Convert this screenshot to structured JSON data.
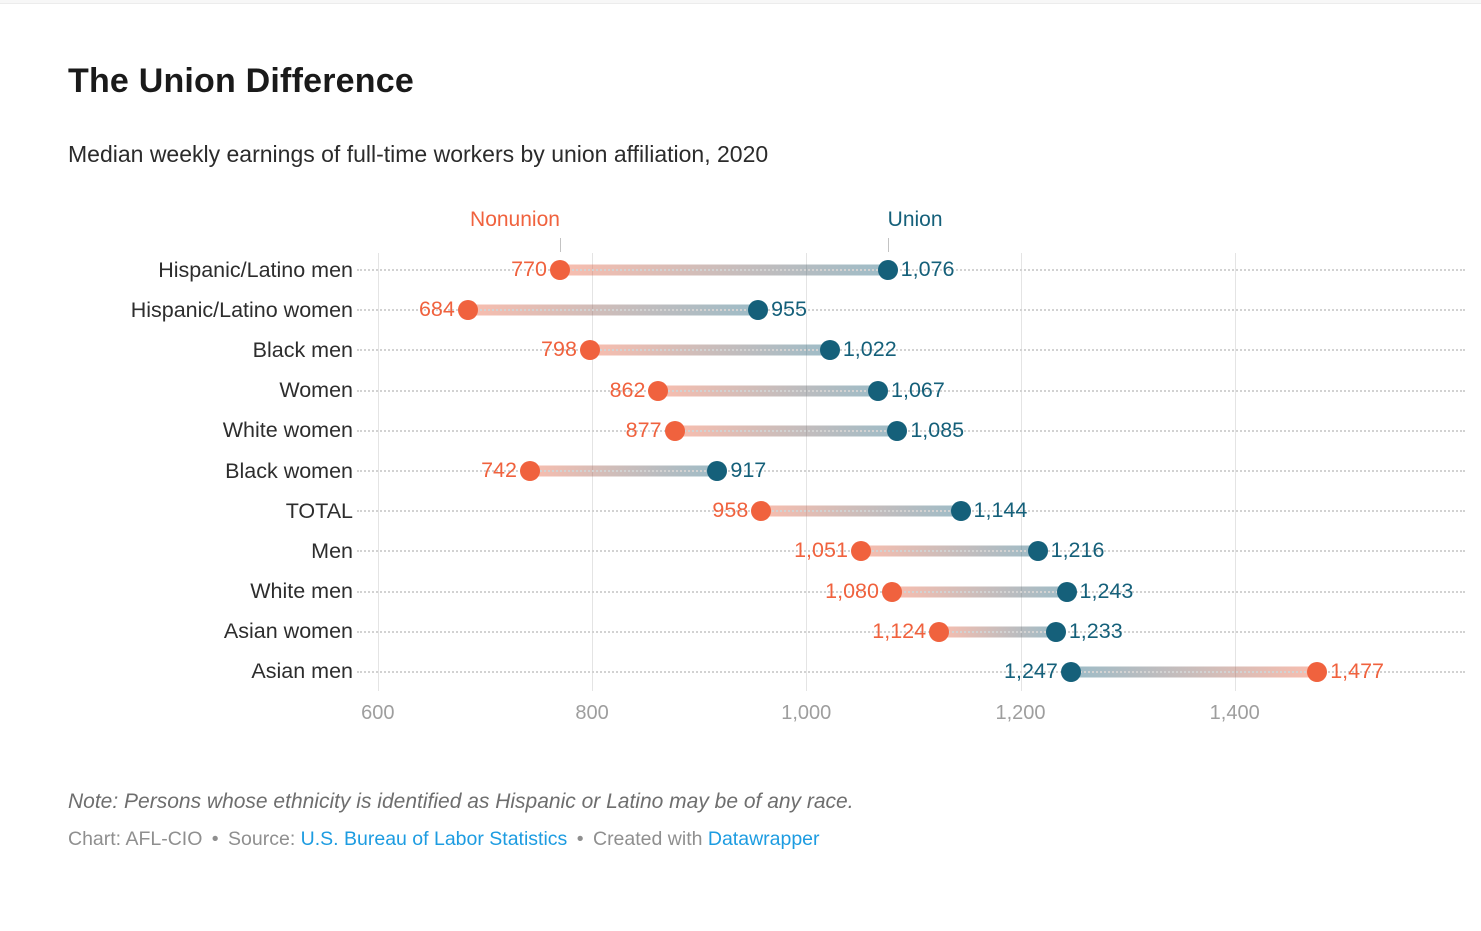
{
  "header": {
    "title": "The Union Difference",
    "subtitle": "Median weekly earnings of full-time workers by union affiliation, 2020"
  },
  "legend": {
    "nonunion_label": "Nonunion",
    "union_label": "Union"
  },
  "chart_data": {
    "type": "bar",
    "variant": "dumbbell",
    "title": "The Union Difference",
    "subtitle": "Median weekly earnings of full-time workers by union affiliation, 2020",
    "categories": [
      "Hispanic/Latino men",
      "Hispanic/Latino women",
      "Black men",
      "Women",
      "White women",
      "Black women",
      "TOTAL",
      "Men",
      "White men",
      "Asian women",
      "Asian men"
    ],
    "series": [
      {
        "name": "Nonunion",
        "values": [
          770,
          684,
          798,
          862,
          877,
          742,
          958,
          1051,
          1080,
          1124,
          1477
        ]
      },
      {
        "name": "Union",
        "values": [
          1076,
          955,
          1022,
          1067,
          1085,
          917,
          1144,
          1216,
          1243,
          1233,
          1247
        ]
      }
    ],
    "xlabel": "",
    "ylabel": "",
    "axis": {
      "min": 588,
      "max": 1615,
      "ticks": [
        600,
        800,
        1000,
        1200,
        1400
      ]
    },
    "grid": "vertical solid + dotted row leaders",
    "legend_position": "above first row, anchored to first-row dot positions"
  },
  "colors": {
    "nonunion": "#f0623e",
    "union": "#15607a",
    "nonunion_soft": "rgba(240,98,62,0.42)",
    "union_soft": "rgba(21,96,122,0.42)",
    "grid": "#e4e4e4",
    "axis_text": "#9e9e9e",
    "link": "#1d9ce1"
  },
  "footer": {
    "note": "Note: Persons whose ethnicity is identified as Hispanic or Latino may be of any race.",
    "byline": {
      "chart_credit": "Chart: AFL-CIO",
      "separator": "•",
      "source_label": "Source:",
      "source_link_text": "U.S. Bureau of Labor Statistics",
      "created_with": "Created with",
      "tool_link_text": "Datawrapper"
    }
  }
}
